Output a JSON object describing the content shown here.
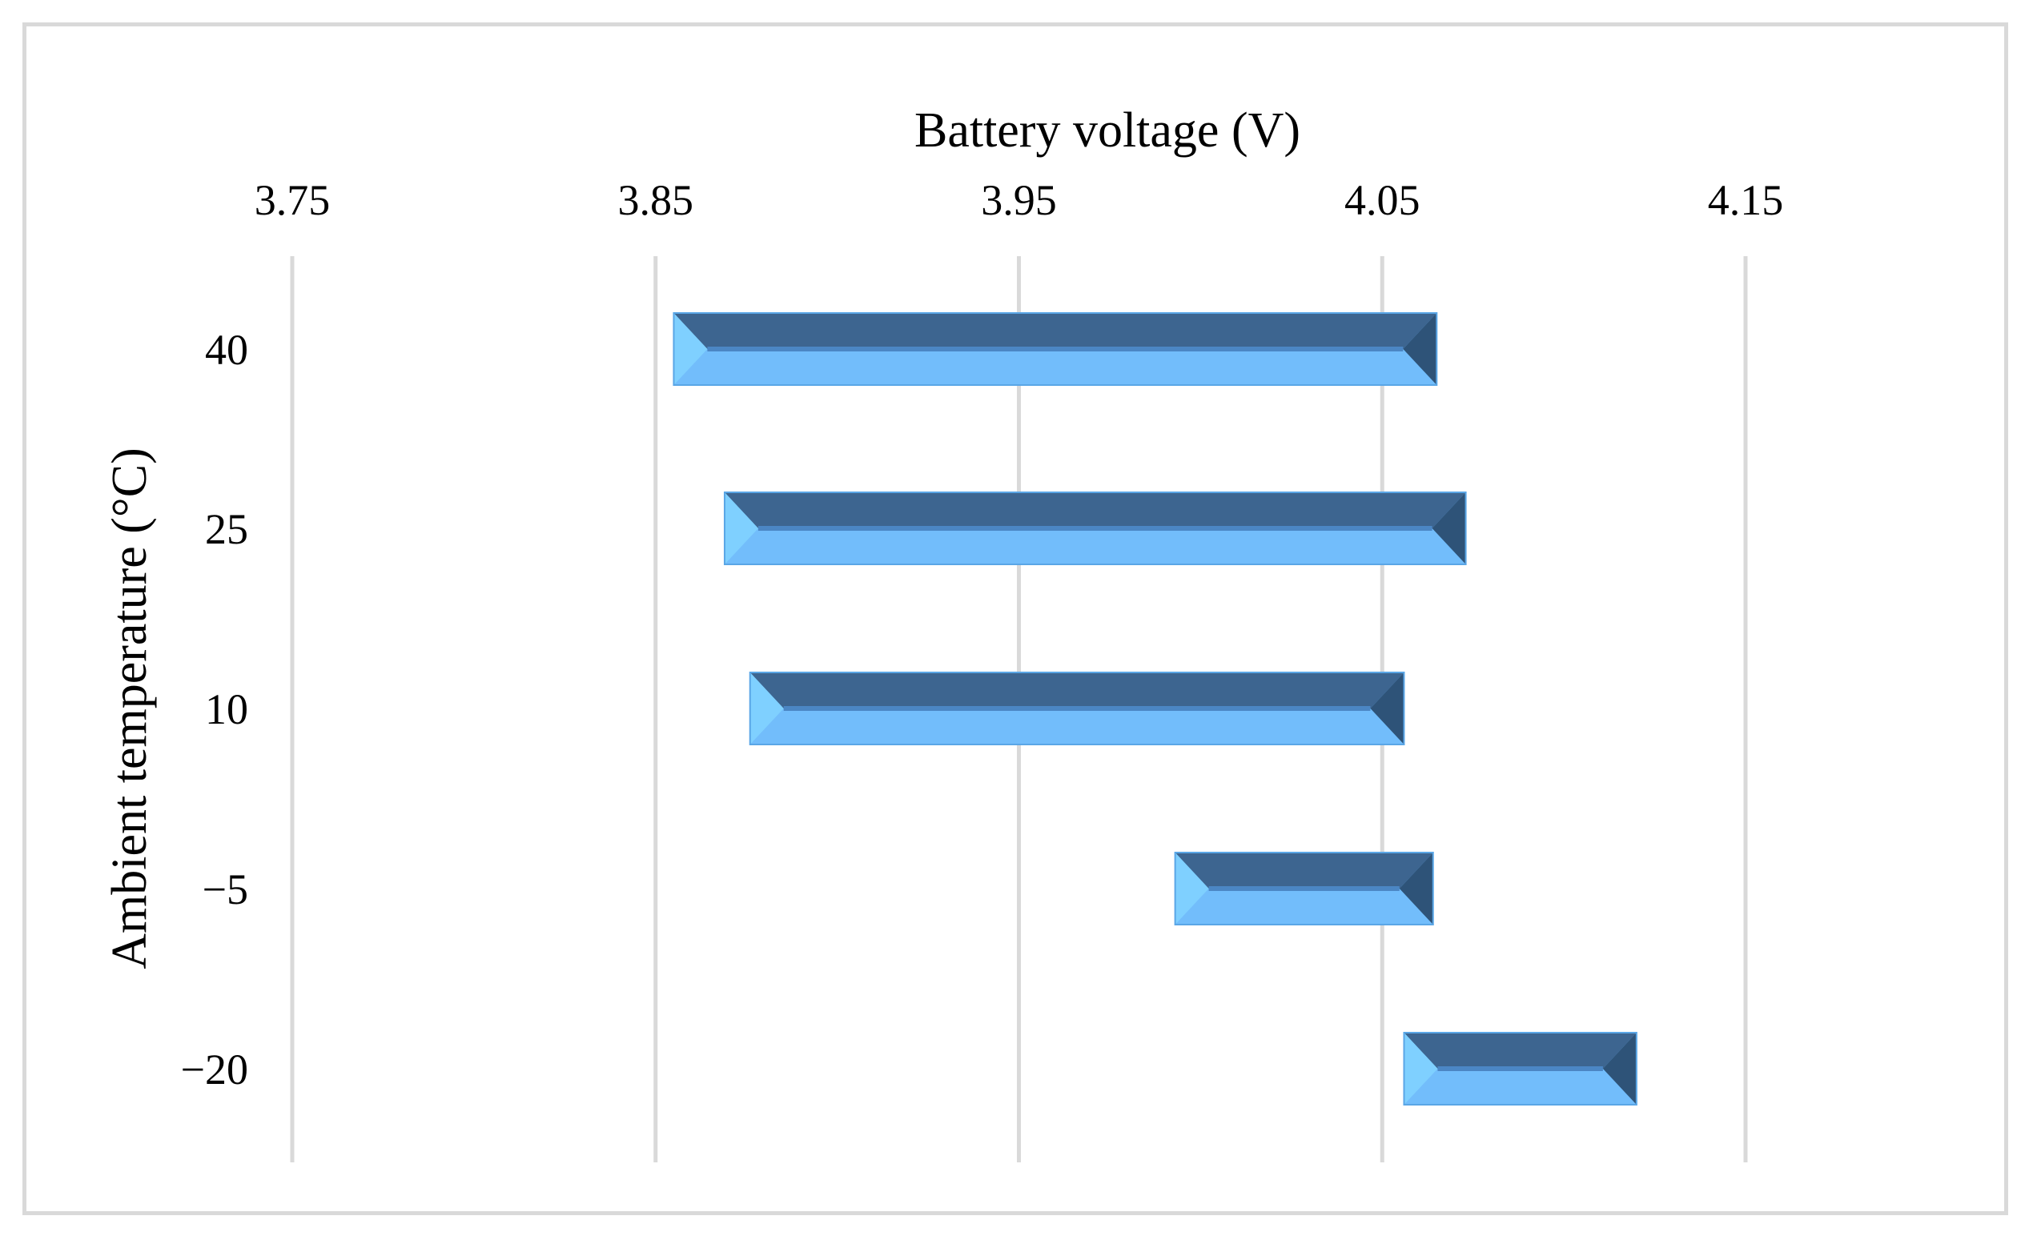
{
  "chart_data": {
    "type": "bar",
    "orientation": "horizontal",
    "bar_style": "floating-range",
    "xlabel": "Battery voltage (V)",
    "ylabel": "Ambient temperature (°C)",
    "xlim": [
      3.75,
      4.15
    ],
    "x_ticks": [
      "3.75",
      "3.85",
      "3.95",
      "4.05",
      "4.15"
    ],
    "x_axis_position": "top",
    "grid": "vertical",
    "categories": [
      "40",
      "25",
      "10",
      "−5",
      "−20"
    ],
    "ranges": [
      {
        "category": "40",
        "low": 3.855,
        "high": 4.065
      },
      {
        "category": "25",
        "low": 3.869,
        "high": 4.073
      },
      {
        "category": "10",
        "low": 3.876,
        "high": 4.056
      },
      {
        "category": "−5",
        "low": 3.993,
        "high": 4.064
      },
      {
        "category": "−20",
        "low": 4.056,
        "high": 4.12
      }
    ],
    "colors": {
      "bar_top": "#3d6590",
      "bar_bottom": "#72bdfb",
      "bar_left_bevel": "#7fd0ff",
      "bar_right_bevel": "#2e5378",
      "grid": "#d9d9d9"
    }
  }
}
